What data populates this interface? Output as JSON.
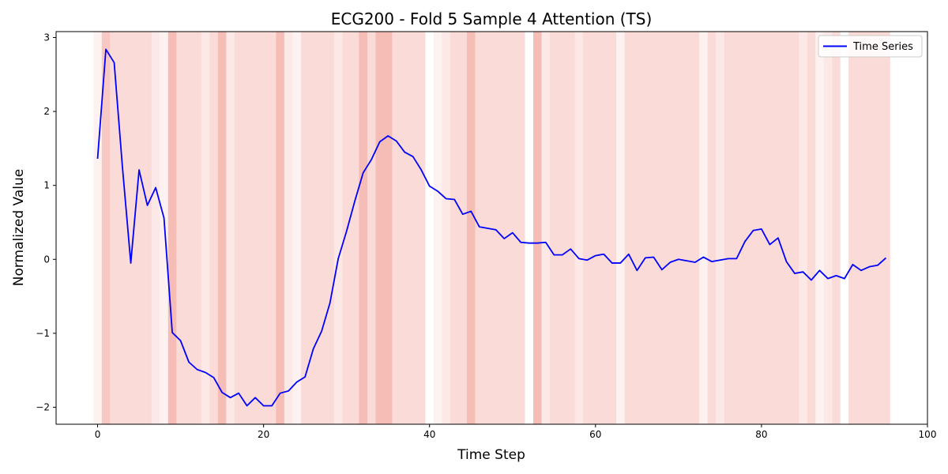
{
  "chart_data": {
    "type": "line",
    "title": "ECG200 - Fold 5 Sample 4 Attention (TS)",
    "xlabel": "Time Step",
    "ylabel": "Normalized Value",
    "xlim": [
      -5,
      100
    ],
    "ylim": [
      -2.23,
      3.08
    ],
    "xticks": [
      0,
      20,
      40,
      60,
      80,
      100
    ],
    "yticks": [
      -2,
      -1,
      0,
      1,
      2,
      3
    ],
    "grid": false,
    "legend_position": "top-right",
    "series": [
      {
        "name": "Time Series",
        "color": "#0000ff",
        "values": [
          1.36,
          2.84,
          2.66,
          1.24,
          -0.05,
          1.21,
          0.73,
          0.97,
          0.56,
          -0.99,
          -1.1,
          -1.39,
          -1.49,
          -1.53,
          -1.6,
          -1.8,
          -1.87,
          -1.81,
          -1.98,
          -1.87,
          -1.98,
          -1.98,
          -1.81,
          -1.78,
          -1.66,
          -1.59,
          -1.21,
          -0.97,
          -0.59,
          0.01,
          0.38,
          0.79,
          1.17,
          1.35,
          1.59,
          1.67,
          1.6,
          1.45,
          1.39,
          1.21,
          0.99,
          0.92,
          0.82,
          0.81,
          0.61,
          0.65,
          0.44,
          0.42,
          0.4,
          0.28,
          0.36,
          0.23,
          0.22,
          0.22,
          0.23,
          0.06,
          0.06,
          0.14,
          0.01,
          -0.01,
          0.05,
          0.07,
          -0.05,
          -0.05,
          0.07,
          -0.15,
          0.02,
          0.03,
          -0.14,
          -0.04,
          0.0,
          -0.02,
          -0.04,
          0.03,
          -0.03,
          -0.01,
          0.01,
          0.01,
          0.24,
          0.39,
          0.41,
          0.2,
          0.29,
          -0.03,
          -0.19,
          -0.17,
          -0.28,
          -0.15,
          -0.26,
          -0.22,
          -0.26,
          -0.07,
          -0.15,
          -0.1,
          -0.08,
          0.02
        ]
      }
    ],
    "attention": {
      "color": "#e74c3c",
      "weights": [
        0.15,
        0.6,
        0.4,
        0.4,
        0.4,
        0.4,
        0.4,
        0.25,
        0.15,
        0.75,
        0.4,
        0.4,
        0.4,
        0.25,
        0.4,
        0.75,
        0.25,
        0.4,
        0.4,
        0.4,
        0.4,
        0.4,
        0.75,
        0.25,
        0.15,
        0.4,
        0.4,
        0.4,
        0.4,
        0.25,
        0.4,
        0.4,
        0.75,
        0.4,
        0.75,
        0.75,
        0.4,
        0.4,
        0.4,
        0.4,
        0.0,
        0.15,
        0.25,
        0.4,
        0.4,
        0.75,
        0.4,
        0.4,
        0.4,
        0.4,
        0.4,
        0.4,
        0.0,
        0.75,
        0.25,
        0.4,
        0.4,
        0.4,
        0.25,
        0.4,
        0.4,
        0.4,
        0.4,
        0.15,
        0.4,
        0.4,
        0.4,
        0.4,
        0.4,
        0.4,
        0.4,
        0.4,
        0.4,
        0.15,
        0.4,
        0.25,
        0.4,
        0.4,
        0.4,
        0.4,
        0.4,
        0.4,
        0.4,
        0.4,
        0.4,
        0.25,
        0.4,
        0.15,
        0.25,
        0.4,
        0.0,
        0.4,
        0.4,
        0.4,
        0.4,
        0.4
      ]
    }
  }
}
